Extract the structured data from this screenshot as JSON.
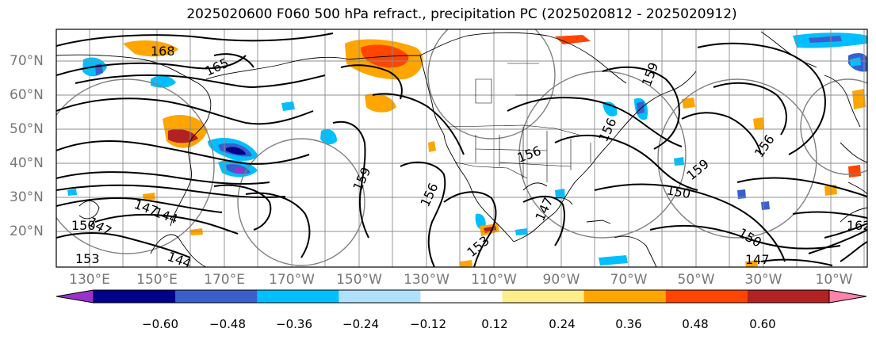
{
  "title": "2025020600 F060 500 hPa refract., precipitation PC (2025020812 - 2025020912)",
  "lat_labels": [
    "70°N",
    "60°N",
    "50°N",
    "40°N",
    "30°N",
    "20°N"
  ],
  "lon_labels": [
    "130°E",
    "150°E",
    "170°E",
    "170°W",
    "150°W",
    "130°W",
    "110°W",
    "90°W",
    "70°W",
    "50°W",
    "30°W",
    "10°W"
  ],
  "colorbar": {
    "colors": [
      "#9932cc",
      "#00008b",
      "#3a5fcd",
      "#00bfff",
      "#b0e2ff",
      "#ffffff",
      "#ffec8b",
      "#ffa500",
      "#ff4500",
      "#b22222",
      "#ff82ab"
    ],
    "tick_labels": [
      "−0.60",
      "−0.48",
      "−0.36",
      "−0.24",
      "−0.12",
      "0.12",
      "0.24",
      "0.36",
      "0.48",
      "0.60"
    ]
  },
  "contour_labels": [
    "168",
    "165",
    "147",
    "144",
    "150",
    "147",
    "153",
    "144",
    "159",
    "156",
    "147",
    "153",
    "156",
    "159",
    "150",
    "156",
    "159",
    "156",
    "162",
    "150",
    "147"
  ]
}
